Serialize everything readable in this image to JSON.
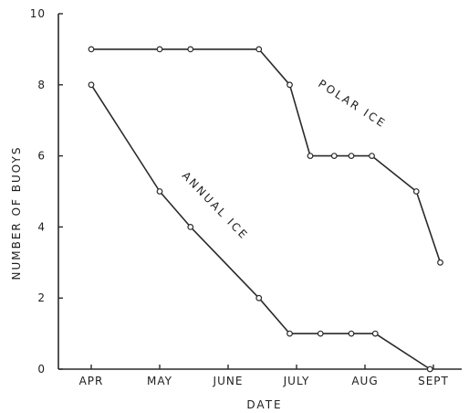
{
  "chart_data": {
    "type": "line",
    "xlabel": "DATE",
    "ylabel": "NUMBER OF BUOYS",
    "ylim": [
      0,
      10
    ],
    "yticks": [
      0,
      2,
      4,
      6,
      8,
      10
    ],
    "xlim": [
      0,
      5.5
    ],
    "x_tick_labels": [
      {
        "label": "APR",
        "x": 0
      },
      {
        "label": "MAY",
        "x": 1
      },
      {
        "label": "JUNE",
        "x": 2
      },
      {
        "label": "JULY",
        "x": 3
      },
      {
        "label": "AUG",
        "x": 4
      },
      {
        "label": "SEPT",
        "x": 5
      }
    ],
    "annotations": [
      {
        "text": "POLAR ICE",
        "series": "polar"
      },
      {
        "text": "ANNUAL ICE",
        "series": "annual"
      }
    ],
    "series": [
      {
        "id": "polar",
        "points": [
          [
            0.0,
            9
          ],
          [
            1.0,
            9
          ],
          [
            1.45,
            9
          ],
          [
            2.45,
            9
          ],
          [
            2.9,
            8
          ],
          [
            3.2,
            6
          ],
          [
            3.55,
            6
          ],
          [
            3.8,
            6
          ],
          [
            4.1,
            6
          ],
          [
            4.75,
            5
          ],
          [
            5.1,
            3
          ]
        ]
      },
      {
        "id": "annual",
        "points": [
          [
            0.0,
            8
          ],
          [
            1.0,
            5
          ],
          [
            1.45,
            4
          ],
          [
            2.45,
            2
          ],
          [
            2.9,
            1
          ],
          [
            3.35,
            1
          ],
          [
            3.8,
            1
          ],
          [
            4.15,
            1
          ],
          [
            4.95,
            0
          ]
        ]
      }
    ]
  }
}
